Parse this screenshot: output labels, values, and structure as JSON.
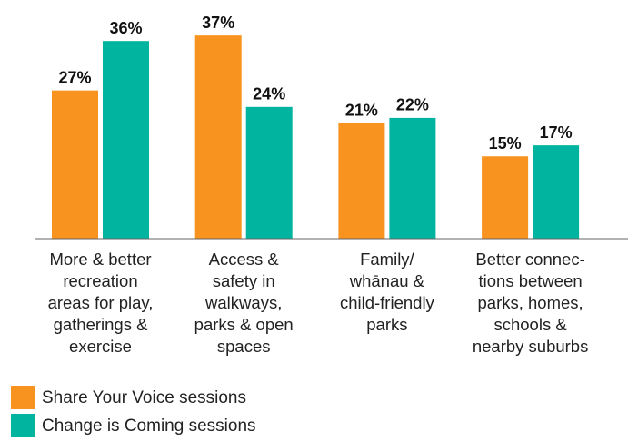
{
  "chart_data": {
    "type": "bar",
    "categories": [
      "More & better\nrecreation\nareas for play,\ngatherings &\nexercise",
      "Access &\nsafety in\nwalkways,\nparks & open\nspaces",
      "Family/\nwhānau &\nchild-friendly\nparks",
      "Better connec-\ntions between\nparks, homes,\nschools &\nnearby suburbs"
    ],
    "series": [
      {
        "name": "Share Your Voice sessions",
        "color": "#f7931e",
        "values": [
          27,
          37,
          21,
          15
        ],
        "value_labels": [
          "27%",
          "37%",
          "21%",
          "15%"
        ]
      },
      {
        "name": "Change is Coming sessions",
        "color": "#00b4a0",
        "values": [
          36,
          24,
          22,
          17
        ],
        "value_labels": [
          "36%",
          "24%",
          "22%",
          "17%"
        ]
      }
    ]
  }
}
